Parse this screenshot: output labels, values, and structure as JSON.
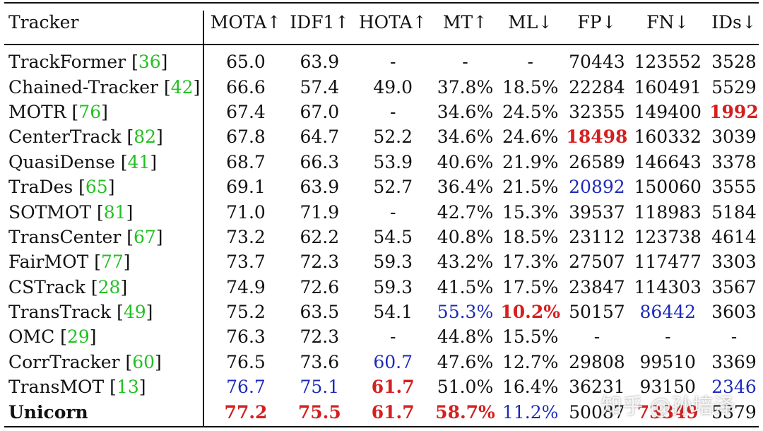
{
  "headers": [
    "Tracker",
    "MOTA↑",
    "IDF1↑",
    "HOTA↑",
    "MT↑",
    "ML↓",
    "FP↓",
    "FN↓",
    "IDs↓"
  ],
  "rows": [
    {
      "name": "TrackFormer",
      "ref": "36",
      "vals": [
        "65.0",
        "63.9",
        "-",
        "-",
        "-",
        "70443",
        "123552",
        "3528"
      ],
      "hl": [
        "",
        "",
        "",
        "",
        "",
        "",
        "",
        ""
      ]
    },
    {
      "name": "Chained-Tracker",
      "ref": "42",
      "vals": [
        "66.6",
        "57.4",
        "49.0",
        "37.8%",
        "18.5%",
        "22284",
        "160491",
        "5529"
      ],
      "hl": [
        "",
        "",
        "",
        "",
        "",
        "",
        "",
        ""
      ]
    },
    {
      "name": "MOTR",
      "ref": "76",
      "vals": [
        "67.4",
        "67.0",
        "-",
        "34.6%",
        "24.5%",
        "32355",
        "149400",
        "1992"
      ],
      "hl": [
        "",
        "",
        "",
        "",
        "",
        "",
        "",
        "best"
      ]
    },
    {
      "name": "CenterTrack",
      "ref": "82",
      "vals": [
        "67.8",
        "64.7",
        "52.2",
        "34.6%",
        "24.6%",
        "18498",
        "160332",
        "3039"
      ],
      "hl": [
        "",
        "",
        "",
        "",
        "",
        "best",
        "",
        ""
      ]
    },
    {
      "name": "QuasiDense",
      "ref": "41",
      "vals": [
        "68.7",
        "66.3",
        "53.9",
        "40.6%",
        "21.9%",
        "26589",
        "146643",
        "3378"
      ],
      "hl": [
        "",
        "",
        "",
        "",
        "",
        "",
        "",
        ""
      ]
    },
    {
      "name": "TraDes",
      "ref": "65",
      "vals": [
        "69.1",
        "63.9",
        "52.7",
        "36.4%",
        "21.5%",
        "20892",
        "150060",
        "3555"
      ],
      "hl": [
        "",
        "",
        "",
        "",
        "",
        "second",
        "",
        ""
      ]
    },
    {
      "name": "SOTMOT",
      "ref": "81",
      "vals": [
        "71.0",
        "71.9",
        "-",
        "42.7%",
        "15.3%",
        "39537",
        "118983",
        "5184"
      ],
      "hl": [
        "",
        "",
        "",
        "",
        "",
        "",
        "",
        ""
      ]
    },
    {
      "name": "TransCenter",
      "ref": "67",
      "vals": [
        "73.2",
        "62.2",
        "54.5",
        "40.8%",
        "18.5%",
        "23112",
        "123738",
        "4614"
      ],
      "hl": [
        "",
        "",
        "",
        "",
        "",
        "",
        "",
        ""
      ]
    },
    {
      "name": "FairMOT",
      "ref": "77",
      "vals": [
        "73.7",
        "72.3",
        "59.3",
        "43.2%",
        "17.3%",
        "27507",
        "117477",
        "3303"
      ],
      "hl": [
        "",
        "",
        "",
        "",
        "",
        "",
        "",
        ""
      ]
    },
    {
      "name": "CSTrack",
      "ref": "28",
      "vals": [
        "74.9",
        "72.6",
        "59.3",
        "41.5%",
        "17.5%",
        "23847",
        "114303",
        "3567"
      ],
      "hl": [
        "",
        "",
        "",
        "",
        "",
        "",
        "",
        ""
      ]
    },
    {
      "name": "TransTrack",
      "ref": "49",
      "vals": [
        "75.2",
        "63.5",
        "54.1",
        "55.3%",
        "10.2%",
        "50157",
        "86442",
        "3603"
      ],
      "hl": [
        "",
        "",
        "",
        "second",
        "best",
        "",
        "second",
        ""
      ]
    },
    {
      "name": "OMC",
      "ref": "29",
      "vals": [
        "76.3",
        "72.3",
        "-",
        "44.8%",
        "15.5%",
        "-",
        "-",
        "-"
      ],
      "hl": [
        "",
        "",
        "",
        "",
        "",
        "",
        "",
        ""
      ]
    },
    {
      "name": "CorrTracker",
      "ref": "60",
      "vals": [
        "76.5",
        "73.6",
        "60.7",
        "47.6%",
        "12.7%",
        "29808",
        "99510",
        "3369"
      ],
      "hl": [
        "",
        "",
        "second",
        "",
        "",
        "",
        "",
        ""
      ]
    },
    {
      "name": "TransMOT",
      "ref": "13",
      "vals": [
        "76.7",
        "75.1",
        "61.7",
        "51.0%",
        "16.4%",
        "36231",
        "93150",
        "2346"
      ],
      "hl": [
        "second",
        "second",
        "best",
        "",
        "",
        "",
        "",
        "second"
      ]
    },
    {
      "name": "Unicorn",
      "ref": "",
      "bold": true,
      "vals": [
        "77.2",
        "75.5",
        "61.7",
        "58.7%",
        "11.2%",
        "50087",
        "73349",
        "5379"
      ],
      "hl": [
        "best",
        "best",
        "best",
        "best",
        "second",
        "",
        "best",
        ""
      ]
    }
  ],
  "watermark": "知乎 @孙培泽"
}
